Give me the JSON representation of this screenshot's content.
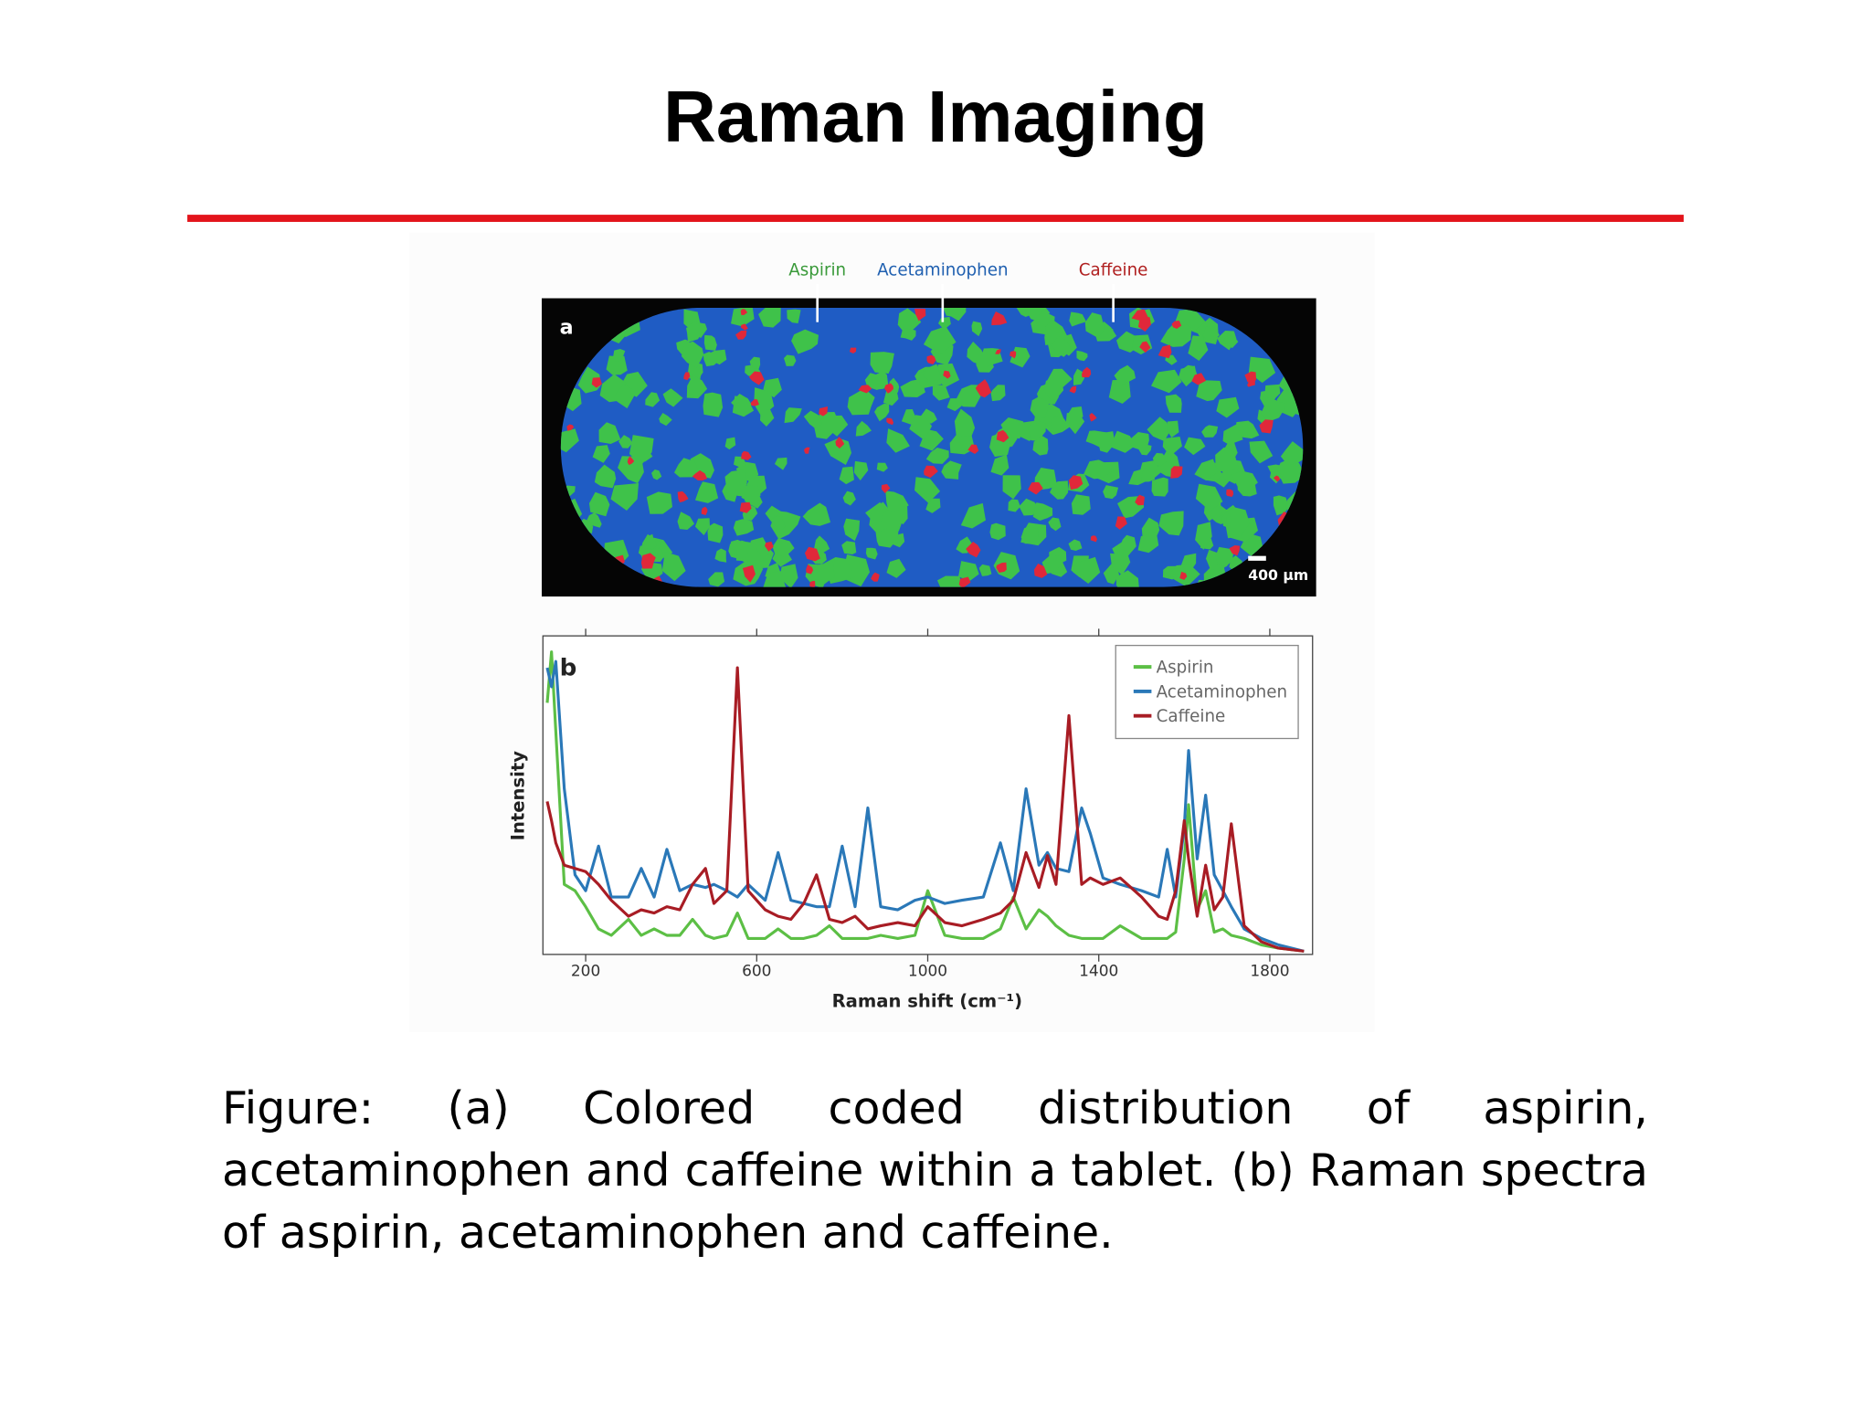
{
  "title": "Raman Imaging",
  "figure": {
    "panel_a": {
      "label": "a",
      "legend": [
        "Aspirin",
        "Acetaminophen",
        "Caffeine"
      ],
      "scale_bar": "400 µm"
    }
  },
  "chart_data": {
    "type": "line",
    "panel_label": "b",
    "x": [
      110,
      120,
      130,
      150,
      175,
      200,
      230,
      260,
      300,
      330,
      360,
      390,
      420,
      450,
      480,
      500,
      530,
      555,
      580,
      620,
      650,
      680,
      710,
      740,
      770,
      800,
      830,
      860,
      890,
      930,
      970,
      1000,
      1040,
      1080,
      1130,
      1170,
      1200,
      1230,
      1260,
      1280,
      1300,
      1330,
      1360,
      1380,
      1410,
      1450,
      1500,
      1540,
      1560,
      1580,
      1600,
      1610,
      1630,
      1650,
      1670,
      1690,
      1710,
      1740,
      1780,
      1820,
      1880
    ],
    "series": [
      {
        "name": "Aspirin",
        "color": "#5cbf45",
        "values": [
          79,
          95,
          70,
          22,
          20,
          15,
          8,
          6,
          11,
          6,
          8,
          6,
          6,
          11,
          6,
          5,
          6,
          13,
          5,
          5,
          8,
          5,
          5,
          6,
          9,
          5,
          5,
          5,
          6,
          5,
          6,
          20,
          6,
          5,
          5,
          8,
          18,
          8,
          14,
          12,
          9,
          6,
          5,
          5,
          5,
          9,
          5,
          5,
          5,
          7,
          30,
          47,
          14,
          20,
          7,
          8,
          6,
          5,
          3,
          2,
          1
        ]
      },
      {
        "name": "Acetaminophen",
        "color": "#2a78b8",
        "values": [
          90,
          84,
          92,
          52,
          25,
          20,
          34,
          18,
          18,
          27,
          18,
          33,
          20,
          22,
          21,
          22,
          20,
          18,
          22,
          17,
          32,
          17,
          16,
          15,
          15,
          34,
          15,
          46,
          15,
          14,
          17,
          18,
          16,
          17,
          18,
          35,
          20,
          52,
          28,
          32,
          27,
          26,
          46,
          38,
          24,
          22,
          20,
          18,
          33,
          18,
          40,
          64,
          30,
          50,
          25,
          20,
          15,
          8,
          5,
          3,
          1
        ]
      },
      {
        "name": "Caffeine",
        "color": "#a81c24",
        "values": [
          48,
          42,
          35,
          28,
          27,
          26,
          22,
          17,
          12,
          14,
          13,
          15,
          14,
          22,
          27,
          16,
          20,
          90,
          20,
          14,
          12,
          11,
          16,
          25,
          11,
          10,
          12,
          8,
          9,
          10,
          9,
          15,
          10,
          9,
          11,
          13,
          17,
          32,
          21,
          31,
          22,
          75,
          22,
          24,
          22,
          24,
          18,
          12,
          11,
          20,
          42,
          30,
          12,
          28,
          14,
          18,
          41,
          9,
          4,
          2,
          1
        ]
      }
    ],
    "xlim": [
      100,
      1900
    ],
    "ylim": [
      0,
      100
    ],
    "xticks": [
      200,
      600,
      1000,
      1400,
      1800
    ],
    "xlabel": "Raman shift (cm⁻¹)",
    "ylabel": "Intensity",
    "legend": "upper right"
  },
  "caption": "Figure: (a) Colored coded distribution of aspirin, acetaminophen and caffeine within a tablet. (b)  Raman spectra of aspirin, acetaminophen and caffeine."
}
